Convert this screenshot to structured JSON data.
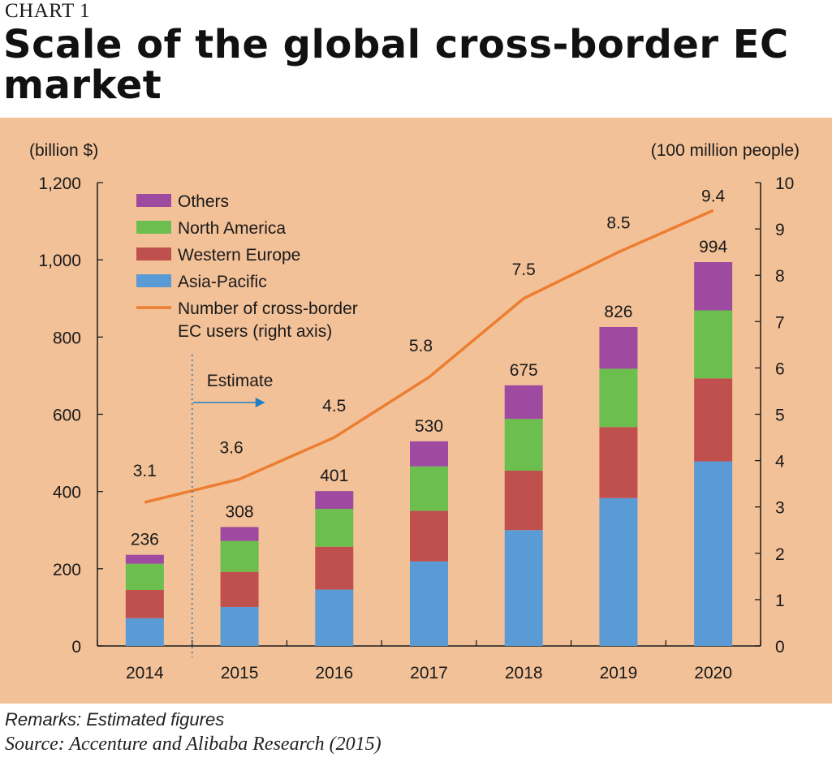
{
  "header": {
    "chart_label": "CHART 1",
    "title": "Scale of the global cross-border EC market"
  },
  "footer": {
    "remarks": "Remarks: Estimated figures",
    "source": "Source: Accenture and Alibaba Research (2015)"
  },
  "colors": {
    "panel": "#f3c198",
    "asia_pacific": "#5b9bd5",
    "western_europe": "#c0504d",
    "north_america": "#6cbf4f",
    "others": "#9e4aa0",
    "users_line": "#ed7d31",
    "estimate": "#1f7fc6"
  },
  "chart_data": {
    "type": "bar",
    "stacked": true,
    "categories": [
      "2014",
      "2015",
      "2016",
      "2017",
      "2018",
      "2019",
      "2020"
    ],
    "series": [
      {
        "name": "Asia-Pacific",
        "values": [
          72,
          101,
          146,
          219,
          300,
          383,
          478
        ]
      },
      {
        "name": "Western Europe",
        "values": [
          73,
          91,
          111,
          131,
          154,
          184,
          215
        ]
      },
      {
        "name": "North America",
        "values": [
          68,
          80,
          98,
          115,
          134,
          151,
          176
        ]
      },
      {
        "name": "Others",
        "values": [
          23,
          36,
          46,
          65,
          87,
          108,
          125
        ]
      }
    ],
    "totals": [
      236,
      308,
      401,
      530,
      675,
      826,
      994
    ],
    "line_series": {
      "name": "Number of cross-border EC users (right axis)",
      "axis": "right",
      "values": [
        3.1,
        3.6,
        4.5,
        5.8,
        7.5,
        8.5,
        9.4
      ]
    },
    "legend": {
      "position": "top-left",
      "entries": [
        "Others",
        "North America",
        "Western Europe",
        "Asia-Pacific"
      ],
      "line_entry": [
        "Number of cross-border",
        "EC users (right axis)"
      ]
    },
    "left_axis": {
      "unit_label": "(billion $)",
      "ylim": [
        0,
        1200
      ],
      "ticks": [
        0,
        200,
        400,
        600,
        800,
        1000,
        1200
      ],
      "tick_labels": [
        "0",
        "200",
        "400",
        "600",
        "800",
        "1,000",
        "1,200"
      ]
    },
    "right_axis": {
      "unit_label": "(100 million people)",
      "ylim": [
        0,
        10
      ],
      "ticks": [
        0,
        1,
        2,
        3,
        4,
        5,
        6,
        7,
        8,
        9,
        10
      ],
      "tick_labels": [
        "0",
        "1",
        "2",
        "3",
        "4",
        "5",
        "6",
        "7",
        "8",
        "9",
        "10"
      ]
    },
    "annotation": {
      "text": "Estimate",
      "from_category": "2015"
    },
    "grid": false
  }
}
